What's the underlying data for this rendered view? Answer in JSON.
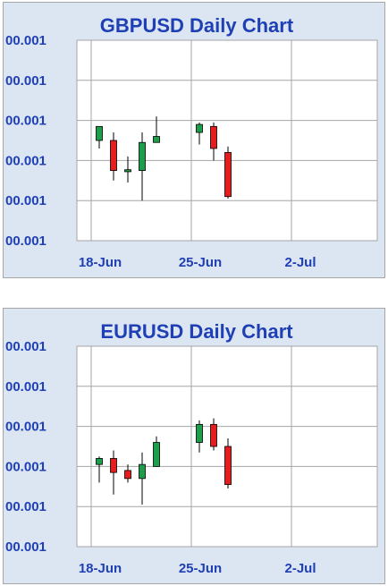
{
  "colors": {
    "up": "#1e9e4a",
    "down": "#e31e1e",
    "text": "#1f3fb5",
    "panel": "#dce6f2",
    "grid": "#a6a6a6"
  },
  "chart_data": [
    {
      "type": "candlestick",
      "title": "GBPUSD Daily Chart",
      "ytick_labels": [
        "00.001",
        "00.001",
        "00.001",
        "00.001",
        "00.001",
        "00.001"
      ],
      "xtick_labels": [
        "18-Jun",
        "25-Jun",
        "2-Jul"
      ],
      "x_range": [
        "2012-06-17",
        "2012-07-08"
      ],
      "y_range": [
        0,
        5
      ],
      "grid": true,
      "candles": [
        {
          "date": "2012-06-18",
          "open": 2.5,
          "high": 2.85,
          "low": 2.3,
          "close": 2.85
        },
        {
          "date": "2012-06-19",
          "open": 2.5,
          "high": 2.7,
          "low": 1.5,
          "close": 1.75
        },
        {
          "date": "2012-06-20",
          "open": 1.72,
          "high": 2.1,
          "low": 1.45,
          "close": 1.77
        },
        {
          "date": "2012-06-21",
          "open": 1.75,
          "high": 2.7,
          "low": 1.0,
          "close": 2.45
        },
        {
          "date": "2012-06-22",
          "open": 2.45,
          "high": 3.1,
          "low": 2.45,
          "close": 2.6
        },
        {
          "date": "2012-06-25",
          "open": 2.7,
          "high": 2.95,
          "low": 2.4,
          "close": 2.9
        },
        {
          "date": "2012-06-26",
          "open": 2.85,
          "high": 2.95,
          "low": 2.0,
          "close": 2.3
        },
        {
          "date": "2012-06-27",
          "open": 2.2,
          "high": 2.35,
          "low": 1.05,
          "close": 1.1
        }
      ]
    },
    {
      "type": "candlestick",
      "title": "EURUSD Daily Chart",
      "ytick_labels": [
        "00.001",
        "00.001",
        "00.001",
        "00.001",
        "00.001",
        "00.001"
      ],
      "xtick_labels": [
        "18-Jun",
        "25-Jun",
        "2-Jul"
      ],
      "x_range": [
        "2012-06-17",
        "2012-07-08"
      ],
      "y_range": [
        0,
        5
      ],
      "grid": true,
      "candles": [
        {
          "date": "2012-06-18",
          "open": 2.05,
          "high": 2.25,
          "low": 1.6,
          "close": 2.2
        },
        {
          "date": "2012-06-19",
          "open": 2.2,
          "high": 2.4,
          "low": 1.3,
          "close": 1.85
        },
        {
          "date": "2012-06-20",
          "open": 1.9,
          "high": 2.05,
          "low": 1.6,
          "close": 1.7
        },
        {
          "date": "2012-06-21",
          "open": 1.7,
          "high": 2.35,
          "low": 1.05,
          "close": 2.05
        },
        {
          "date": "2012-06-22",
          "open": 2.0,
          "high": 2.75,
          "low": 2.0,
          "close": 2.6
        },
        {
          "date": "2012-06-25",
          "open": 2.6,
          "high": 3.15,
          "low": 2.35,
          "close": 3.05
        },
        {
          "date": "2012-06-26",
          "open": 3.05,
          "high": 3.2,
          "low": 2.4,
          "close": 2.5
        },
        {
          "date": "2012-06-27",
          "open": 2.5,
          "high": 2.7,
          "low": 1.45,
          "close": 1.55
        }
      ]
    }
  ]
}
